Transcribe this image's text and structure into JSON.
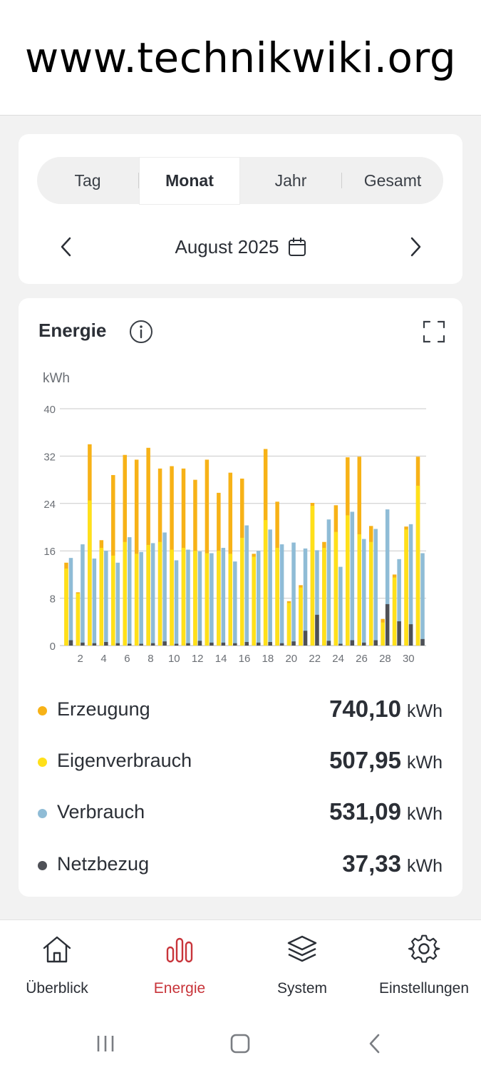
{
  "watermark": "www.technikwiki.org",
  "period_tabs": [
    {
      "label": "Tag",
      "active": false
    },
    {
      "label": "Monat",
      "active": true
    },
    {
      "label": "Jahr",
      "active": false
    },
    {
      "label": "Gesamt",
      "active": false
    }
  ],
  "period_label": "August 2025",
  "energy": {
    "title": "Energie",
    "unit_label": "kWh"
  },
  "chart_data": {
    "type": "bar",
    "ylabel": "kWh",
    "ylim": [
      0,
      40
    ],
    "yticks": [
      0,
      8,
      16,
      24,
      32,
      40
    ],
    "xticks": [
      2,
      4,
      6,
      8,
      10,
      12,
      14,
      16,
      18,
      20,
      22,
      24,
      26,
      28,
      30
    ],
    "grid": true,
    "colors": {
      "Erzeugung": "#f7b217",
      "Eigenverbrauch": "#ffe01a",
      "Verbrauch": "#8fbcd6",
      "Netzbezug": "#4e5056"
    },
    "days": [
      1,
      2,
      3,
      4,
      5,
      6,
      7,
      8,
      9,
      10,
      11,
      12,
      13,
      14,
      15,
      16,
      17,
      18,
      19,
      20,
      21,
      22,
      23,
      24,
      25,
      26,
      27,
      28,
      29,
      30,
      31
    ],
    "series": [
      {
        "name": "Erzeugung",
        "values": [
          14.0,
          9.0,
          34.0,
          17.8,
          28.8,
          32.2,
          31.4,
          33.4,
          29.9,
          30.3,
          29.9,
          28.0,
          31.4,
          25.8,
          29.2,
          28.2,
          15.5,
          33.2,
          24.3,
          7.5,
          10.2,
          24.1,
          17.5,
          23.7,
          31.8,
          31.9,
          20.2,
          4.5,
          12.0,
          20.1,
          31.9
        ]
      },
      {
        "name": "Eigenverbrauch",
        "values": [
          13.0,
          8.8,
          24.5,
          16.5,
          15.2,
          17.5,
          15.5,
          17.0,
          17.5,
          16.2,
          16.5,
          16.0,
          15.6,
          16.0,
          15.5,
          18.2,
          15.0,
          21.2,
          16.5,
          7.2,
          9.8,
          23.6,
          16.5,
          19.2,
          22.0,
          18.8,
          17.5,
          3.9,
          11.5,
          19.6,
          27.0
        ]
      },
      {
        "name": "Verbrauch",
        "values": [
          14.8,
          17.1,
          14.7,
          16.0,
          14.0,
          18.3,
          15.8,
          17.3,
          19.1,
          14.4,
          16.2,
          15.9,
          15.6,
          16.5,
          14.2,
          20.3,
          16.0,
          19.6,
          17.1,
          17.4,
          16.4,
          16.1,
          21.3,
          13.3,
          22.6,
          18.0,
          19.7,
          23.0,
          14.6,
          20.5,
          15.6
        ]
      },
      {
        "name": "Netzbezug",
        "values": [
          0.9,
          0.5,
          0.4,
          0.6,
          0.4,
          0.3,
          0.3,
          0.4,
          0.7,
          0.3,
          0.4,
          0.8,
          0.5,
          0.5,
          0.4,
          0.6,
          0.5,
          0.6,
          0.4,
          0.7,
          2.5,
          5.2,
          0.8,
          0.3,
          0.9,
          0.5,
          0.9,
          7.0,
          4.1,
          3.6,
          1.1
        ]
      }
    ]
  },
  "legend": [
    {
      "label": "Erzeugung",
      "value": "740,10",
      "unit": "kWh",
      "color": "#f7b217"
    },
    {
      "label": "Eigenverbrauch",
      "value": "507,95",
      "unit": "kWh",
      "color": "#ffe01a"
    },
    {
      "label": "Verbrauch",
      "value": "531,09",
      "unit": "kWh",
      "color": "#8fbcd6"
    },
    {
      "label": "Netzbezug",
      "value": "37,33",
      "unit": "kWh",
      "color": "#4e5056"
    }
  ],
  "bottom_nav": [
    {
      "label": "Überblick",
      "icon": "home-icon",
      "active": false
    },
    {
      "label": "Energie",
      "icon": "bar-chart-icon",
      "active": true
    },
    {
      "label": "System",
      "icon": "layers-icon",
      "active": false
    },
    {
      "label": "Einstellungen",
      "icon": "gear-icon",
      "active": false
    }
  ],
  "accent_color": "#c8343a"
}
